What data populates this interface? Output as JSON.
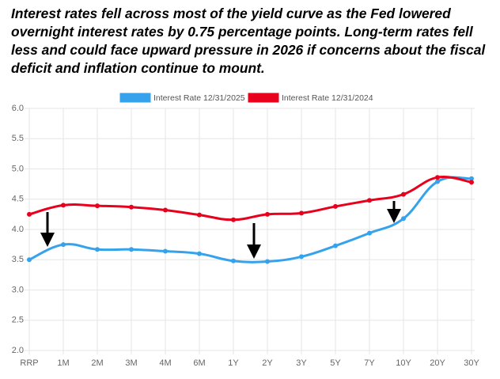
{
  "chart_data": {
    "type": "line",
    "title": "Interest rates fell across most of the yield curve as the Fed lowered overnight interest rates by 0.75 percentage points. Long-term rates fell less and could face upward pressure in 2026 if concerns about the fiscal deficit and inflation continue to mount.",
    "categories": [
      "RRP",
      "1M",
      "2M",
      "3M",
      "4M",
      "6M",
      "1Y",
      "2Y",
      "3Y",
      "5Y",
      "7Y",
      "10Y",
      "20Y",
      "30Y"
    ],
    "series": [
      {
        "name": "Interest Rate 12/31/2025",
        "color": "#36a2eb",
        "values": [
          3.5,
          3.75,
          3.67,
          3.67,
          3.64,
          3.6,
          3.48,
          3.47,
          3.55,
          3.73,
          3.94,
          4.18,
          4.79,
          4.84
        ]
      },
      {
        "name": "Interest Rate 12/31/2024",
        "color": "#e8001c",
        "values": [
          4.25,
          4.4,
          4.39,
          4.37,
          4.32,
          4.24,
          4.16,
          4.25,
          4.27,
          4.38,
          4.48,
          4.58,
          4.86,
          4.78
        ]
      }
    ],
    "ylim": [
      2.0,
      6.0
    ],
    "yticks": [
      {
        "value": 2,
        "label": "2.0"
      },
      {
        "value": 2.5,
        "label": "2.5"
      },
      {
        "value": 3,
        "label": "3.0"
      },
      {
        "value": 3.5,
        "label": "3.5"
      },
      {
        "value": 4,
        "label": "4.0"
      },
      {
        "value": 4.5,
        "label": "4.5"
      },
      {
        "value": 5,
        "label": "5.0"
      },
      {
        "value": 5.5,
        "label": "5.5"
      },
      {
        "value": 6,
        "label": "6.0"
      }
    ],
    "grid": true,
    "legend": "top"
  }
}
